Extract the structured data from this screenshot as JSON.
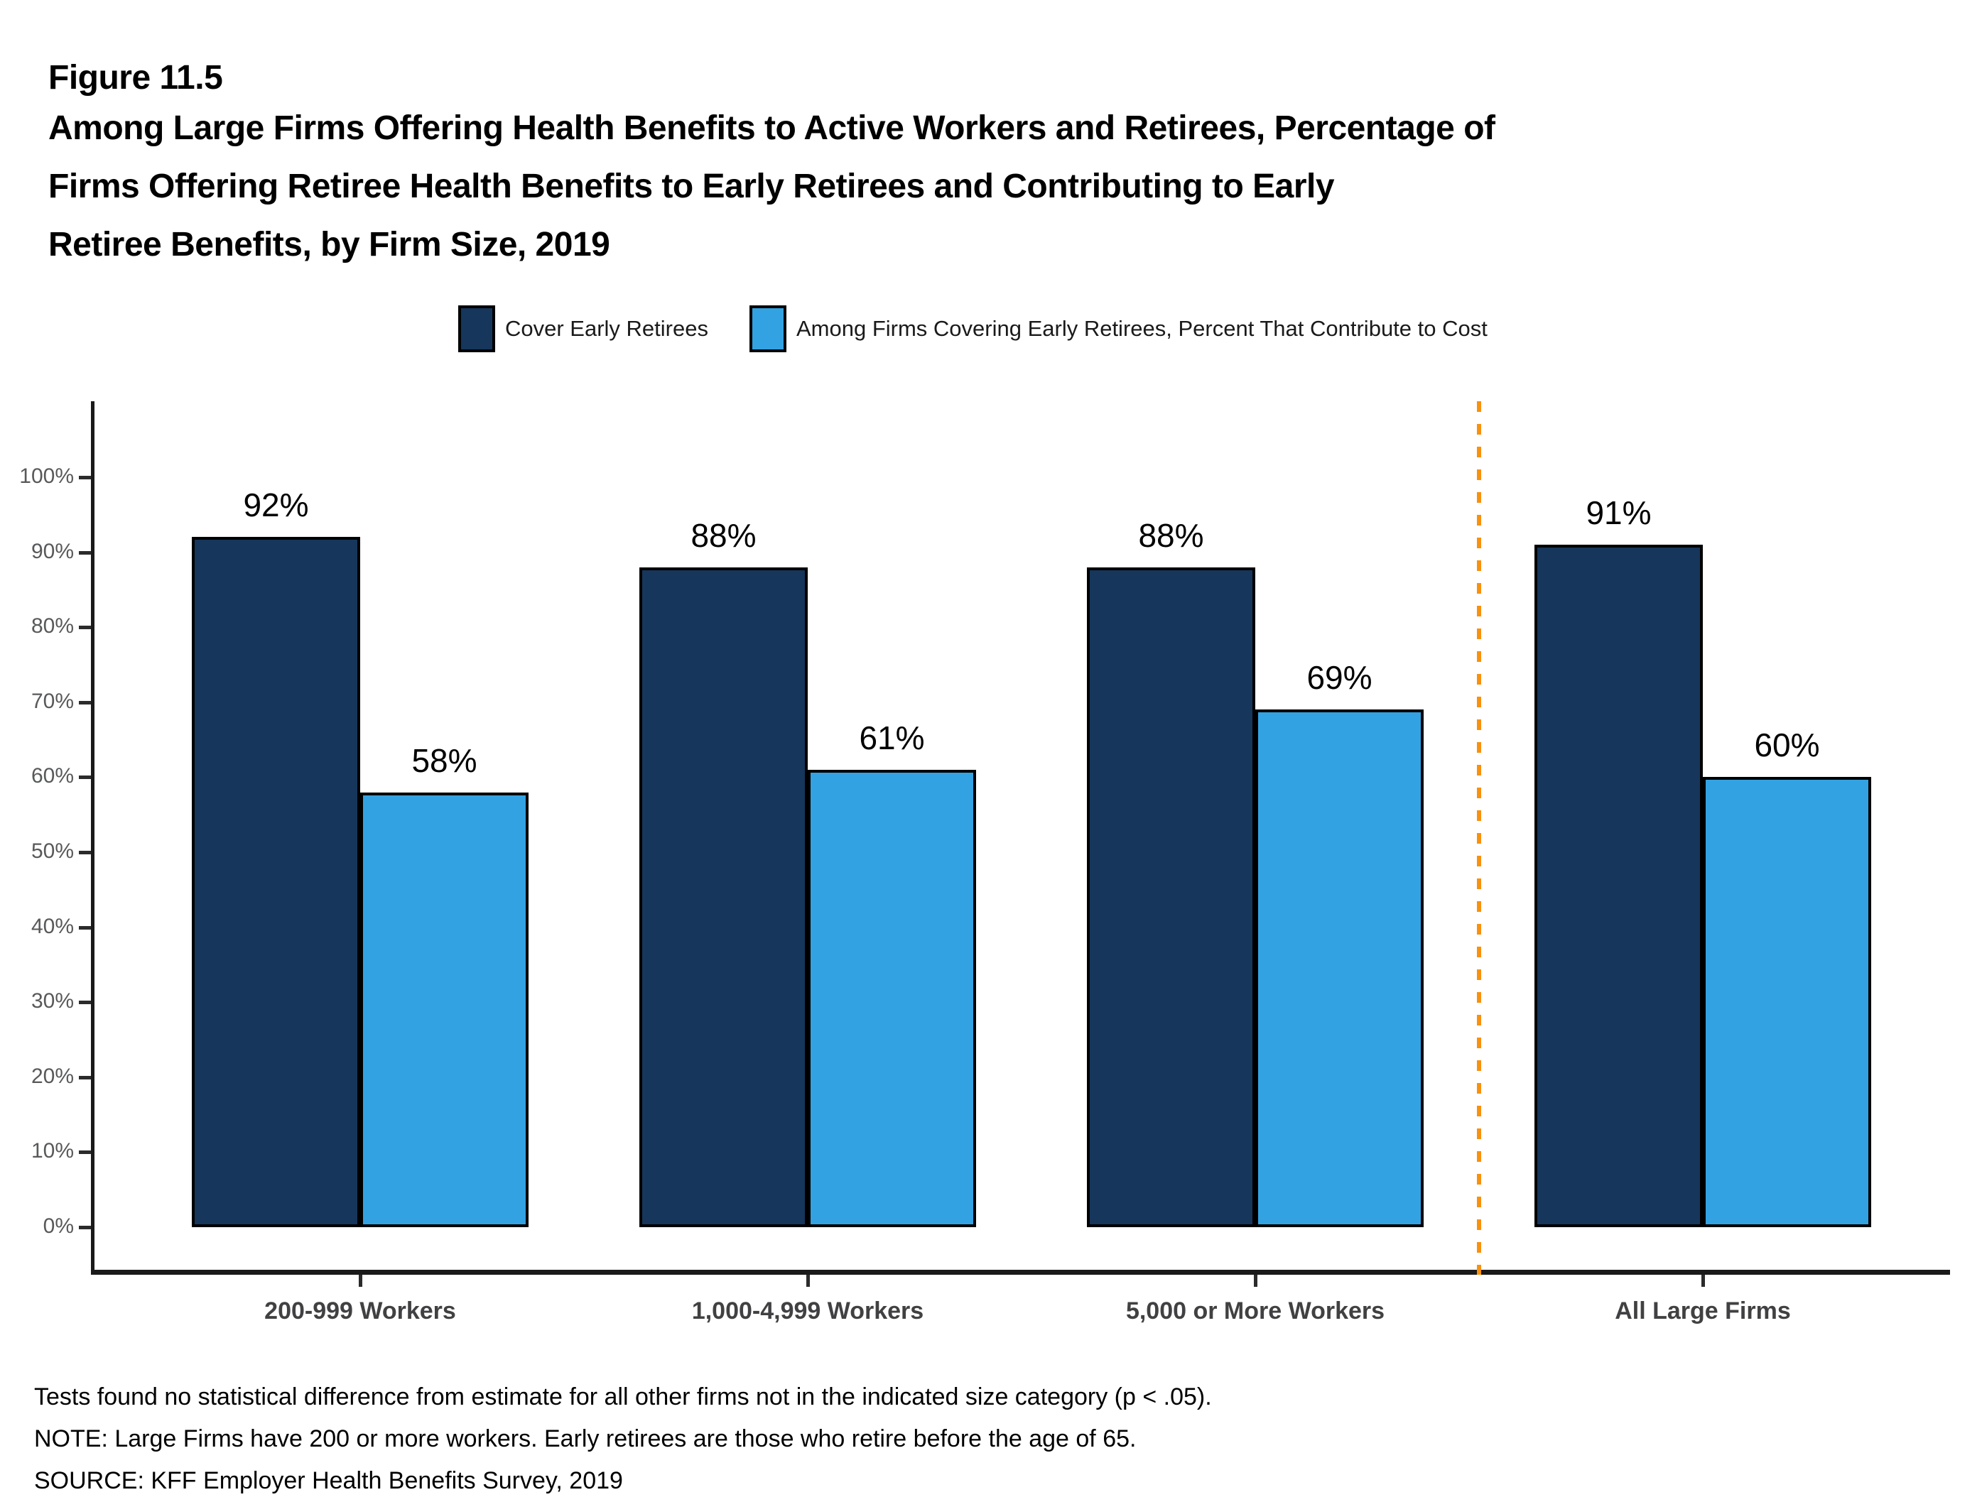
{
  "figure": {
    "label": "Figure 11.5",
    "title_lines": [
      "Among Large Firms Offering Health Benefits to Active Workers and Retirees, Percentage of",
      "Firms Offering Retiree Health Benefits to Early Retirees and Contributing to Early",
      "Retiree Benefits, by Firm Size, 2019"
    ]
  },
  "legend": [
    {
      "label": "Cover Early Retirees",
      "color": "#16365B"
    },
    {
      "label": "Among Firms Covering Early Retirees, Percent That Contribute to Cost",
      "color": "#33A2E2"
    }
  ],
  "chart_data": {
    "type": "bar",
    "categories": [
      "200-999 Workers",
      "1,000-4,999 Workers",
      "5,000 or More Workers",
      "All Large Firms"
    ],
    "series": [
      {
        "name": "Cover Early Retirees",
        "color": "#16365B",
        "values": [
          92,
          88,
          88,
          91
        ]
      },
      {
        "name": "Among Firms Covering Early Retirees, Percent That Contribute to Cost",
        "color": "#33A2E2",
        "values": [
          58,
          61,
          69,
          60
        ]
      }
    ],
    "value_labels": [
      [
        "92%",
        "88%",
        "88%",
        "91%"
      ],
      [
        "58%",
        "61%",
        "69%",
        "60%"
      ]
    ],
    "ylim": [
      0,
      100
    ],
    "yticks": [
      "0%",
      "10%",
      "20%",
      "30%",
      "40%",
      "50%",
      "60%",
      "70%",
      "80%",
      "90%",
      "100%"
    ],
    "grid": "off",
    "legend_position": "top",
    "separator": {
      "before_category": "All Large Firms",
      "color": "#F8910D",
      "style": "dashed"
    }
  },
  "notes": [
    "Tests found no statistical difference from estimate for all other firms not in the indicated size category (p < .05).",
    "NOTE: Large Firms have 200 or more workers. Early retirees are those who retire before the age of 65.",
    "SOURCE: KFF Employer Health Benefits Survey, 2019"
  ]
}
